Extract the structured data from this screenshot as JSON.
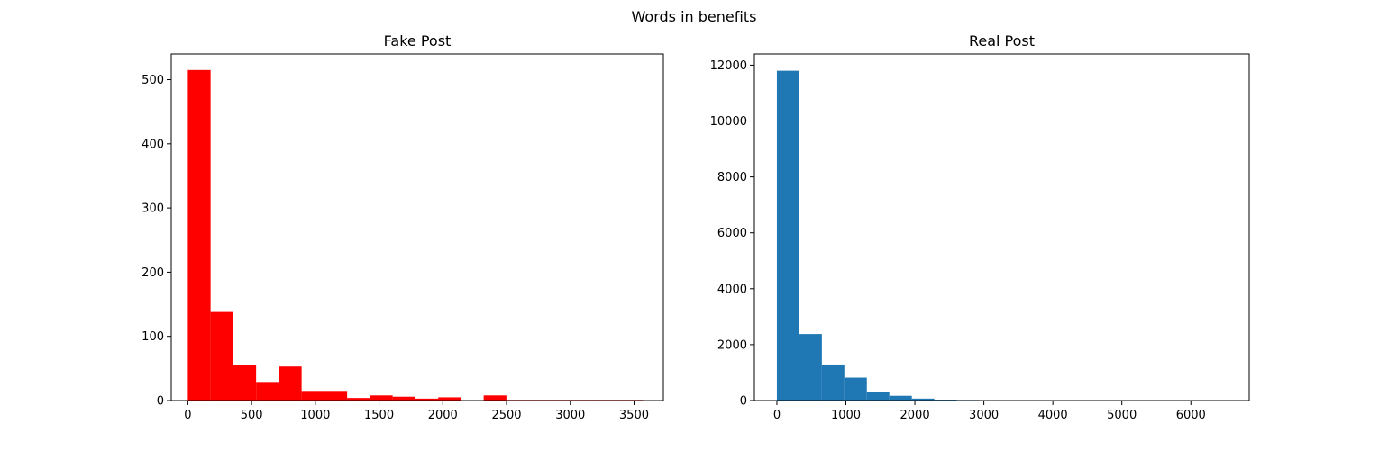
{
  "suptitle": "Words in benefits",
  "chart_data": [
    {
      "type": "bar",
      "title": "Fake Post",
      "color": "#ff0000",
      "xlabel": "",
      "ylabel": "",
      "xlim": [
        -130,
        3730
      ],
      "ylim": [
        0,
        540
      ],
      "x_ticks": [
        0,
        500,
        1000,
        1500,
        2000,
        2500,
        3000,
        3500
      ],
      "x_tick_labels": [
        "0",
        "500",
        "1000",
        "1500",
        "2000",
        "2500",
        "3000",
        "3500"
      ],
      "y_ticks": [
        0,
        100,
        200,
        300,
        400,
        500
      ],
      "y_tick_labels": [
        "0",
        "100",
        "200",
        "300",
        "400",
        "500"
      ],
      "bin_edges": [
        0,
        178.5,
        357,
        535.5,
        714,
        892.5,
        1071,
        1249.5,
        1428,
        1606.5,
        1785,
        1963.5,
        2142,
        2320.5,
        2499,
        2677.5,
        2856,
        3034.5,
        3213,
        3391.5,
        3570
      ],
      "values": [
        515,
        138,
        55,
        29,
        53,
        15,
        15,
        4,
        8,
        6,
        3,
        5,
        0,
        8,
        1,
        1,
        1,
        1,
        1,
        1
      ]
    },
    {
      "type": "bar",
      "title": "Real Post",
      "color": "#1f77b4",
      "xlabel": "",
      "ylabel": "",
      "xlim": [
        -326,
        6846
      ],
      "ylim": [
        0,
        12400
      ],
      "x_ticks": [
        0,
        1000,
        2000,
        3000,
        4000,
        5000,
        6000
      ],
      "x_tick_labels": [
        "0",
        "1000",
        "2000",
        "3000",
        "4000",
        "5000",
        "6000"
      ],
      "y_ticks": [
        0,
        2000,
        4000,
        6000,
        8000,
        10000,
        12000
      ],
      "y_tick_labels": [
        "0",
        "2000",
        "4000",
        "6000",
        "8000",
        "10000",
        "12000"
      ],
      "bin_edges": [
        0,
        326,
        652,
        978,
        1304,
        1630,
        1956,
        2282,
        2608,
        2934,
        3260,
        3586,
        3912,
        4238,
        4564,
        4890,
        5216,
        5542,
        5868,
        6194,
        6520
      ],
      "values": [
        11800,
        2380,
        1290,
        820,
        320,
        170,
        70,
        30,
        20,
        10,
        5,
        3,
        2,
        2,
        1,
        1,
        1,
        1,
        1,
        1
      ]
    }
  ]
}
